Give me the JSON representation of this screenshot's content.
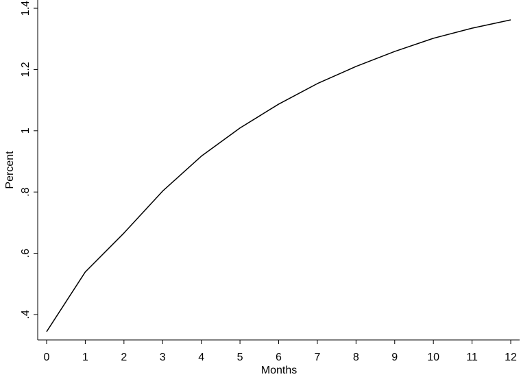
{
  "chart_data": {
    "type": "line",
    "x_label": "Months",
    "y_label": "Percent",
    "x": [
      0,
      1,
      2,
      3,
      4,
      5,
      6,
      7,
      8,
      9,
      10,
      11,
      12
    ],
    "values": [
      0.344,
      0.539,
      0.666,
      0.803,
      0.917,
      1.009,
      1.087,
      1.154,
      1.21,
      1.259,
      1.302,
      1.335,
      1.362
    ],
    "color": "#000000",
    "xlim": [
      -0.23,
      12.23
    ],
    "xticks": [
      0,
      1,
      2,
      3,
      4,
      5,
      6,
      7,
      8,
      9,
      10,
      11,
      12
    ],
    "ylim": [
      0.317,
      1.427
    ],
    "yticks": [
      {
        "value": 0.4,
        "label": ".4"
      },
      {
        "value": 0.6,
        "label": ".6"
      },
      {
        "value": 0.8,
        "label": ".8"
      },
      1,
      1.2,
      1.4
    ],
    "grid": false
  }
}
